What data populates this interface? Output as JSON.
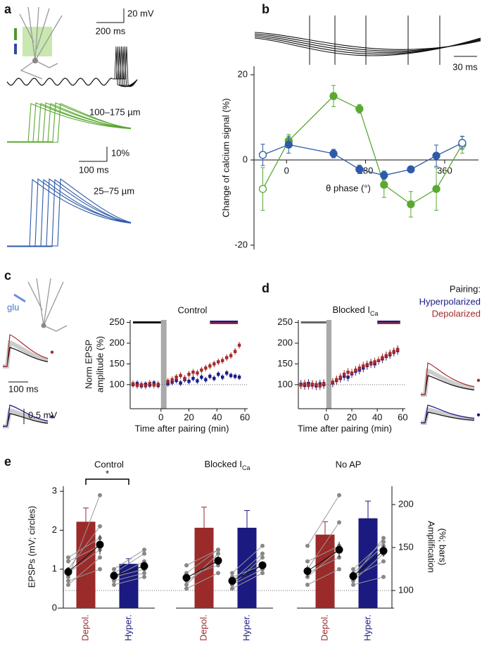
{
  "panel_labels": [
    "a",
    "b",
    "c",
    "d",
    "e"
  ],
  "panel_a": {
    "scale_v": "20 mV",
    "scale_t": "200 ms",
    "label_distal": "100–175 µm",
    "scale_pct": "10%",
    "scale_t2": "100 ms",
    "label_proximal": "25–75 µm"
  },
  "panel_b": {
    "scale_t": "30 ms"
  },
  "panel_c": {
    "label_glu": "glu",
    "scale_v": "0.5 mV",
    "scale_t": "100 ms"
  },
  "legend_title": "Pairing:",
  "chart_data": [
    {
      "type": "line",
      "ylabel": "Change of calcium signal (%)",
      "xlabel": "θ phase (°)",
      "xlim": [
        -74,
        437
      ],
      "ylim": [
        -21,
        22
      ],
      "xticks": [
        0,
        180,
        360
      ],
      "yticks": [
        -20,
        0,
        20
      ],
      "x": [
        -54,
        5,
        107,
        166,
        222,
        283,
        341,
        400
      ],
      "series": [
        {
          "color": "#5aa832",
          "values": [
            -6.8,
            4.5,
            15,
            12,
            -5.8,
            -10.4,
            -6.8,
            3.6
          ],
          "errors": [
            5,
            1.5,
            2.5,
            1,
            3,
            3,
            5,
            2
          ],
          "hollow": [
            true,
            false,
            false,
            false,
            false,
            false,
            false,
            true
          ]
        },
        {
          "color": "#2e5aa8",
          "values": [
            1.2,
            3.6,
            1.5,
            -2.2,
            -3.6,
            -2.2,
            1,
            4
          ],
          "errors": [
            2.5,
            2,
            1,
            1,
            1,
            0.5,
            2.5,
            1.5
          ],
          "hollow": [
            true,
            false,
            false,
            false,
            false,
            false,
            false,
            true
          ]
        }
      ]
    },
    {
      "type": "scatter",
      "title": "Control",
      "ylabel": [
        "Norm EPSP",
        "amplitude (%)"
      ],
      "xlabel": "Time after pairing (min)",
      "xlim": [
        -22,
        62
      ],
      "ylim": [
        42,
        256
      ],
      "xticks": [
        0,
        20,
        40,
        60
      ],
      "yticks": [
        100,
        150,
        200,
        250
      ],
      "baseline": 100,
      "pairing_window": [
        0,
        4
      ],
      "pre_period": [
        -20,
        0
      ],
      "pre_color": "#111111",
      "post_period": [
        35,
        55
      ],
      "x": [
        -20,
        -17,
        -14,
        -11,
        -8,
        -5,
        -2,
        5,
        8,
        11,
        14,
        17,
        20,
        23,
        26,
        29,
        32,
        35,
        38,
        41,
        44,
        47,
        50,
        53,
        56
      ],
      "series": [
        {
          "color": "#1a1a8c",
          "error": 7,
          "values": [
            100,
            103,
            97,
            101,
            99,
            104,
            98,
            102,
            106,
            110,
            104,
            112,
            108,
            115,
            109,
            118,
            112,
            120,
            115,
            125,
            118,
            128,
            122,
            120,
            118
          ]
        },
        {
          "color": "#a52a2a",
          "error": 8,
          "values": [
            102,
            98,
            100,
            97,
            103,
            99,
            101,
            108,
            112,
            118,
            122,
            115,
            125,
            130,
            128,
            135,
            140,
            145,
            150,
            155,
            158,
            165,
            170,
            180,
            195
          ]
        }
      ]
    },
    {
      "type": "scatter",
      "title": {
        "text": "Blocked I",
        "subscript": "Ca"
      },
      "xlabel": "Time after pairing (min)",
      "xlim": [
        -22,
        62
      ],
      "ylim": [
        42,
        256
      ],
      "xticks": [
        0,
        20,
        40,
        60
      ],
      "yticks": [
        100,
        150,
        200,
        250
      ],
      "baseline": 100,
      "pairing_window": [
        0,
        4
      ],
      "pre_period": [
        -20,
        0
      ],
      "pre_color": "#666666",
      "post_period": [
        40,
        58
      ],
      "x": [
        -20,
        -17,
        -14,
        -11,
        -8,
        -5,
        -2,
        5,
        8,
        11,
        14,
        17,
        20,
        23,
        26,
        29,
        32,
        35,
        38,
        41,
        44,
        47,
        50,
        53,
        56
      ],
      "series": [
        {
          "name": "Hyperpolarized",
          "color": "#1a1a8c",
          "error": 10,
          "values": [
            101,
            98,
            103,
            99,
            97,
            102,
            100,
            104,
            110,
            115,
            120,
            118,
            126,
            132,
            135,
            140,
            146,
            152,
            150,
            158,
            162,
            168,
            172,
            178,
            182
          ]
        },
        {
          "name": "Depolarized",
          "color": "#a52a2a",
          "error": 10,
          "values": [
            99,
            102,
            98,
            101,
            100,
            97,
            103,
            106,
            112,
            118,
            125,
            130,
            128,
            135,
            140,
            145,
            148,
            150,
            155,
            158,
            165,
            170,
            175,
            180,
            185
          ]
        }
      ]
    },
    {
      "type": "paired_bar",
      "ylabel": "EPSPs (mV; circles)",
      "y2label": [
        "Amplification",
        "(%; bars)"
      ],
      "ylim": [
        0,
        3.13
      ],
      "yticks": [
        0,
        1,
        2,
        3
      ],
      "y2lim": [
        79.5,
        221.3
      ],
      "y2ticks": [
        100,
        150,
        200
      ],
      "baseline": 100,
      "groups": [
        {
          "title": "Control",
          "significance": "*",
          "conditions": [
            {
              "label": "Depol.",
              "color": "#9b2a2a",
              "bar": 180,
              "bar_error": 16,
              "pre": 0.93,
              "pre_error": 0.12,
              "post": 1.63,
              "post_error": 0.25,
              "cells": [
                [
                  0.8,
                  2.9
                ],
                [
                  1.0,
                  2.1
                ],
                [
                  1.2,
                  1.6
                ],
                [
                  0.6,
                  1.3
                ],
                [
                  0.9,
                  1.5
                ],
                [
                  0.7,
                  1.0
                ],
                [
                  1.3,
                  1.8
                ]
              ]
            },
            {
              "label": "Hyper.",
              "color": "#1a1a80",
              "bar": 131,
              "bar_error": 6,
              "pre": 0.83,
              "pre_error": 0.1,
              "post": 1.08,
              "post_error": 0.12,
              "cells": [
                [
                  0.8,
                  1.2
                ],
                [
                  0.9,
                  1.4
                ],
                [
                  0.7,
                  0.9
                ],
                [
                  1.0,
                  1.5
                ],
                [
                  0.6,
                  0.8
                ],
                [
                  0.8,
                  1.0
                ]
              ]
            }
          ]
        },
        {
          "title": {
            "text": "Blocked I",
            "subscript": "Ca"
          },
          "conditions": [
            {
              "label": "Depol.",
              "color": "#9b2a2a",
              "bar": 173,
              "bar_error": 24,
              "pre": 0.78,
              "pre_error": 0.1,
              "post": 1.22,
              "post_error": 0.12,
              "cells": [
                [
                  0.6,
                  1.4
                ],
                [
                  0.9,
                  1.5
                ],
                [
                  0.7,
                  1.2
                ],
                [
                  1.1,
                  1.5
                ],
                [
                  0.5,
                  0.9
                ],
                [
                  0.8,
                  1.1
                ]
              ]
            },
            {
              "label": "Hyper.",
              "color": "#1a1a80",
              "bar": 173,
              "bar_error": 20,
              "pre": 0.7,
              "pre_error": 0.1,
              "post": 1.1,
              "post_error": 0.1,
              "cells": [
                [
                  0.6,
                  1.3
                ],
                [
                  0.7,
                  1.4
                ],
                [
                  0.8,
                  1.1
                ],
                [
                  0.5,
                  0.9
                ],
                [
                  0.9,
                  1.6
                ],
                [
                  0.6,
                  1.0
                ]
              ]
            }
          ]
        },
        {
          "title": "No AP",
          "conditions": [
            {
              "label": "Depol.",
              "color": "#9b2a2a",
              "bar": 165,
              "bar_error": 15,
              "pre": 0.95,
              "pre_error": 0.15,
              "post": 1.5,
              "post_error": 0.2,
              "cells": [
                [
                  1.6,
                  2.9
                ],
                [
                  1.0,
                  2.2
                ],
                [
                  0.8,
                  1.5
                ],
                [
                  1.2,
                  1.6
                ],
                [
                  0.6,
                  1.0
                ],
                [
                  0.9,
                  1.3
                ]
              ]
            },
            {
              "label": "Hyper.",
              "color": "#1a1a80",
              "bar": 184,
              "bar_error": 20,
              "pre": 0.82,
              "pre_error": 0.12,
              "post": 1.47,
              "post_error": 0.15,
              "cells": [
                [
                  0.8,
                  1.8
                ],
                [
                  0.9,
                  1.6
                ],
                [
                  0.7,
                  1.4
                ],
                [
                  0.6,
                  0.8
                ],
                [
                  1.0,
                  1.7
                ],
                [
                  0.8,
                  1.2
                ]
              ]
            }
          ]
        }
      ]
    }
  ]
}
